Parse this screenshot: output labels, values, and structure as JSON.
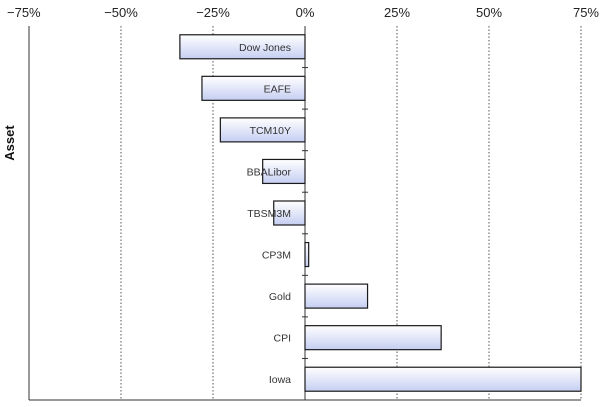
{
  "chart_data": {
    "type": "bar",
    "orientation": "horizontal",
    "title": "",
    "xlabel": "",
    "ylabel": "Asset",
    "xlim": [
      -75,
      75
    ],
    "x_ticks": [
      "−75%",
      "−50%",
      "−25%",
      "0%",
      "25%",
      "50%",
      "75%"
    ],
    "x_tick_values": [
      -75,
      -50,
      -25,
      0,
      25,
      50,
      75
    ],
    "grid": "vertical dotted",
    "categories": [
      "Dow Jones",
      "EAFE",
      "TCM10Y",
      "BBALibor",
      "TBSM3M",
      "CP3M",
      "Gold",
      "CPI",
      "Iowa"
    ],
    "values": [
      -34,
      -28,
      -23,
      -11.5,
      -8.5,
      1,
      17,
      37,
      75
    ],
    "colors": {
      "bar_fill_light": "#ffffff",
      "bar_fill_dark": "#c5cef2",
      "bar_stroke": "#1a1a1a",
      "grid": "#555555",
      "axis": "#333333"
    }
  }
}
